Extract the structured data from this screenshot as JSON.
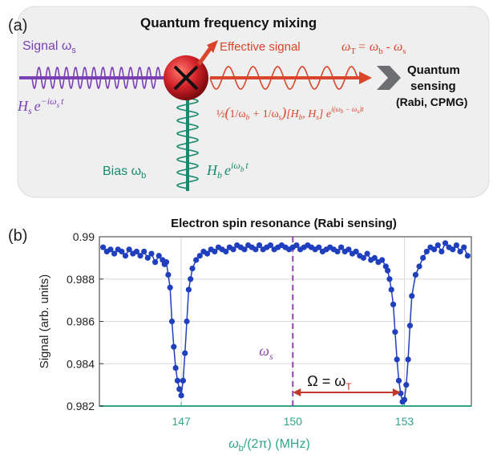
{
  "panel_a": {
    "label": "(a)",
    "title": "Quantum frequency mixing",
    "signal_label": "Signal ω",
    "signal_sub": "s",
    "signal_hamiltonian": "H",
    "signal_hamiltonian_sub": "s",
    "signal_exponent": "e",
    "signal_exponent_power": "−iω",
    "signal_exponent_sub": "s",
    "signal_exponent_t": "t",
    "effective_label": "Effective signal",
    "omega_t_relation": "ω",
    "omega_t_sub": "T",
    "omega_t_rhs": "= ω",
    "omega_t_rhs_sub1": "b",
    "omega_t_minus": " - ω",
    "omega_t_rhs_sub2": "s",
    "effective_formula": "½(1/ω_b + 1/ω_s)[H_b, H_s] e^{i(ω_b−ω_s)t}",
    "sensing_line1": "Quantum",
    "sensing_line2": "sensing",
    "sensing_line3": "(Rabi, CPMG)",
    "bias_label": "Bias ω",
    "bias_sub": "b",
    "bias_hamiltonian": "H",
    "bias_hamiltonian_sub": "b",
    "bias_exponent": "e",
    "bias_exponent_power": "iω",
    "bias_exponent_sub": "b",
    "bias_exponent_t": "t",
    "colors": {
      "signal": "#7b3fb5",
      "bias": "#1a8a6e",
      "effective": "#d9452b",
      "mixer": "#c4161c",
      "arrow_grey": "#6d6e71",
      "panel_bg": "#efefef"
    }
  },
  "panel_b": {
    "label": "(b)",
    "title": "Electron spin resonance (Rabi sensing)",
    "omega_s_marker": "ω",
    "omega_s_marker_sub": "s",
    "omega_annotation": "Ω = ω",
    "omega_annotation_sub": "T"
  },
  "chart_data": {
    "type": "scatter",
    "title": "Electron spin resonance (Rabi sensing)",
    "xlabel": "ω_b/(2π) (MHz)",
    "ylabel": "Signal (arb. units)",
    "xlim": [
      144.8,
      154.8
    ],
    "ylim": [
      0.982,
      0.99
    ],
    "xticks": [
      147,
      150,
      153
    ],
    "yticks": [
      0.982,
      0.984,
      0.986,
      0.988,
      0.99
    ],
    "ytick_labels": [
      "0.982",
      "0.984",
      "0.986",
      "0.988",
      "0.99"
    ],
    "grid": true,
    "vline_x": 150,
    "colors": {
      "series": "#1f3fbf",
      "vline": "#8e44ad",
      "annotation": "#c0392b",
      "axis": "#2fa58a"
    },
    "series": [
      {
        "x": [
          144.9,
          145.0,
          145.1,
          145.2,
          145.3,
          145.4,
          145.5,
          145.6,
          145.7,
          145.8,
          145.9,
          146.0,
          146.1,
          146.2,
          146.3,
          146.4,
          146.5,
          146.55,
          146.6,
          146.65,
          146.7,
          146.75,
          146.8,
          146.85,
          146.9,
          146.95,
          147.0,
          147.05,
          147.1,
          147.15,
          147.2,
          147.25,
          147.3,
          147.4,
          147.5,
          147.6,
          147.7,
          147.8,
          147.9,
          148.0,
          148.1,
          148.2,
          148.3,
          148.4,
          148.5,
          148.6,
          148.7,
          148.8,
          148.9,
          149.0,
          149.1,
          149.2,
          149.3,
          149.4,
          149.5,
          149.6,
          149.7,
          149.8,
          149.9,
          150.0,
          150.1,
          150.2,
          150.3,
          150.4,
          150.5,
          150.6,
          150.7,
          150.8,
          150.9,
          151.0,
          151.1,
          151.2,
          151.3,
          151.4,
          151.5,
          151.6,
          151.7,
          151.8,
          151.9,
          152.0,
          152.1,
          152.2,
          152.3,
          152.4,
          152.5,
          152.55,
          152.6,
          152.65,
          152.7,
          152.75,
          152.8,
          152.85,
          152.9,
          152.95,
          153.0,
          153.05,
          153.1,
          153.15,
          153.2,
          153.3,
          153.4,
          153.5,
          153.6,
          153.7,
          153.8,
          153.9,
          154.0,
          154.1,
          154.2,
          154.3,
          154.4,
          154.5,
          154.6,
          154.7
        ],
        "y": [
          0.9895,
          0.9893,
          0.9894,
          0.9892,
          0.9894,
          0.9893,
          0.9891,
          0.9894,
          0.9892,
          0.9893,
          0.9891,
          0.9893,
          0.989,
          0.9892,
          0.9888,
          0.9891,
          0.9889,
          0.9887,
          0.9888,
          0.9882,
          0.9876,
          0.986,
          0.9848,
          0.9838,
          0.9832,
          0.9828,
          0.9825,
          0.9832,
          0.9845,
          0.986,
          0.9875,
          0.988,
          0.9885,
          0.9889,
          0.9891,
          0.9893,
          0.9892,
          0.9894,
          0.9893,
          0.9895,
          0.9894,
          0.9893,
          0.9895,
          0.9894,
          0.9896,
          0.9895,
          0.9894,
          0.9896,
          0.9895,
          0.9894,
          0.9896,
          0.9894,
          0.9895,
          0.9896,
          0.9894,
          0.9895,
          0.9896,
          0.9895,
          0.9894,
          0.9895,
          0.9896,
          0.9894,
          0.9895,
          0.9896,
          0.9895,
          0.9894,
          0.9895,
          0.9893,
          0.9894,
          0.9895,
          0.9894,
          0.9893,
          0.9895,
          0.9893,
          0.9894,
          0.9892,
          0.9893,
          0.9891,
          0.989,
          0.9892,
          0.9889,
          0.989,
          0.9888,
          0.9889,
          0.9886,
          0.9884,
          0.988,
          0.9875,
          0.9868,
          0.9855,
          0.9842,
          0.9832,
          0.9826,
          0.9822,
          0.9823,
          0.983,
          0.9842,
          0.9858,
          0.9872,
          0.9882,
          0.9886,
          0.989,
          0.9893,
          0.9895,
          0.9894,
          0.9896,
          0.9893,
          0.9897,
          0.9895,
          0.9894,
          0.9896,
          0.9893,
          0.9895,
          0.9891
        ]
      }
    ]
  }
}
